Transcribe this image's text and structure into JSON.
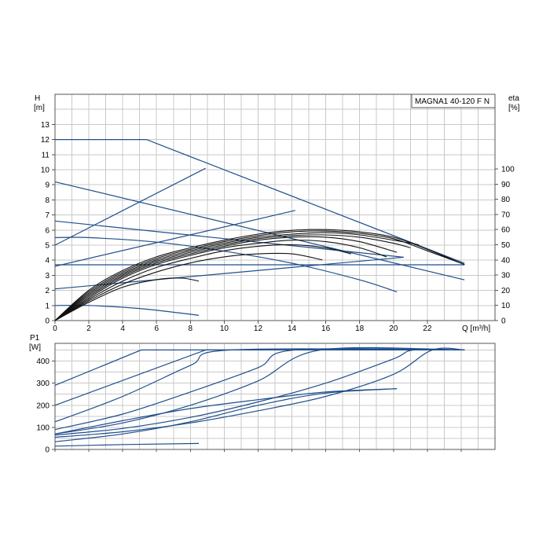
{
  "chart_data": [
    {
      "type": "line",
      "title": "MAGNA1 40-120 F N",
      "xlabel": "Q [m³/h]",
      "ylabel_unit_top": "H",
      "ylabel_unit_bottom": "[m]",
      "y2label_top": "eta",
      "y2label_bottom": "[%]",
      "xlim": [
        0,
        26
      ],
      "ylim": [
        0,
        15
      ],
      "y2lim": [
        0,
        100
      ],
      "x_ticks": [
        "0",
        "2",
        "4",
        "6",
        "8",
        "10",
        "12",
        "14",
        "16",
        "18",
        "20",
        "22"
      ],
      "y_ticks": [
        "0",
        "1",
        "2",
        "3",
        "4",
        "5",
        "6",
        "7",
        "8",
        "9",
        "10",
        "11",
        "12",
        "13"
      ],
      "y2_ticks": [
        "0",
        "10",
        "20",
        "30",
        "40",
        "50",
        "60",
        "70",
        "80",
        "90",
        "100"
      ],
      "grid": true,
      "head_curves": [
        {
          "x": [
            0,
            5.4,
            24.2
          ],
          "y": [
            12.0,
            12.0,
            3.8
          ]
        },
        {
          "x": [
            0,
            24.2
          ],
          "y": [
            9.2,
            2.7
          ]
        },
        {
          "x": [
            0,
            20.6
          ],
          "y": [
            6.6,
            4.2
          ]
        },
        {
          "x": [
            0,
            24.2
          ],
          "y": [
            3.7,
            3.7
          ]
        },
        {
          "x": [
            0,
            2.0,
            6.0,
            10.0,
            14.0,
            18.0,
            20.2
          ],
          "y": [
            5.5,
            5.5,
            5.2,
            4.6,
            3.8,
            2.7,
            1.9
          ]
        },
        {
          "x": [
            0,
            2.0,
            5.0,
            8.5
          ],
          "y": [
            1.0,
            1.0,
            0.8,
            0.35
          ]
        }
      ],
      "control_lines": [
        {
          "x": [
            0,
            8.9
          ],
          "y": [
            5.0,
            10.1
          ]
        },
        {
          "x": [
            0,
            14.2
          ],
          "y": [
            3.6,
            7.3
          ]
        },
        {
          "x": [
            0,
            20.6
          ],
          "y": [
            2.1,
            4.2
          ]
        }
      ],
      "efficiency_curves": [
        {
          "x": [
            0,
            2,
            4,
            6,
            8,
            10,
            12,
            14,
            16,
            18,
            20,
            22,
            24.2
          ],
          "y": [
            0,
            20,
            33,
            42,
            48,
            53,
            57,
            59.5,
            60,
            58.5,
            55,
            47,
            37
          ]
        },
        {
          "x": [
            0,
            2,
            4,
            6,
            8,
            10,
            12,
            14,
            16,
            18,
            20,
            22,
            24.2
          ],
          "y": [
            0,
            19,
            32,
            41,
            47,
            52,
            56,
            58.5,
            59,
            57.5,
            54,
            46,
            37
          ]
        },
        {
          "x": [
            0,
            2,
            4,
            6,
            8,
            10,
            12,
            14,
            16,
            18,
            20,
            21.5
          ],
          "y": [
            0,
            18,
            31,
            40,
            46,
            51,
            55,
            57,
            58,
            56.5,
            53,
            50
          ]
        },
        {
          "x": [
            0,
            2,
            4,
            6,
            8,
            10,
            12,
            14,
            16,
            18,
            20,
            21
          ],
          "y": [
            0,
            17,
            30,
            39,
            45,
            50,
            54,
            56,
            56.5,
            55,
            51,
            48
          ]
        },
        {
          "x": [
            0,
            2,
            4,
            6,
            8,
            10,
            12,
            14,
            16,
            18,
            20.2
          ],
          "y": [
            0,
            16,
            29,
            38,
            44,
            49,
            53,
            55,
            55,
            52,
            45
          ]
        },
        {
          "x": [
            0,
            2,
            4,
            6,
            8,
            10,
            12,
            14,
            16,
            18,
            19.6
          ],
          "y": [
            0,
            15,
            28,
            37,
            43,
            48,
            51,
            53,
            52,
            48,
            42
          ]
        },
        {
          "x": [
            0,
            2,
            4,
            6,
            8,
            10,
            12,
            14,
            16,
            17.5
          ],
          "y": [
            0,
            14,
            26,
            35,
            41,
            46,
            49,
            50,
            48,
            44
          ]
        },
        {
          "x": [
            0,
            2,
            4,
            6,
            8,
            10,
            12,
            14,
            15.8
          ],
          "y": [
            0,
            13,
            24,
            32,
            38,
            42,
            44,
            44,
            40
          ]
        },
        {
          "x": [
            0,
            2,
            4,
            6,
            7.5,
            8.5
          ],
          "y": [
            0,
            12,
            22,
            27,
            28,
            26
          ]
        }
      ]
    },
    {
      "type": "line",
      "ylabel_unit_top": "P1",
      "ylabel_unit_bottom": "[W]",
      "xlim": [
        0,
        26
      ],
      "ylim": [
        0,
        480
      ],
      "y_ticks": [
        "0",
        "100",
        "200",
        "300",
        "400"
      ],
      "grid": true,
      "power_curves": [
        {
          "x": [
            0,
            5.1,
            24.2
          ],
          "y": [
            290,
            450,
            450
          ]
        },
        {
          "x": [
            0,
            8.9,
            24.2
          ],
          "y": [
            200,
            450,
            450
          ]
        },
        {
          "x": [
            0,
            4,
            8,
            10.4,
            24.2
          ],
          "y": [
            125,
            240,
            380,
            450,
            450
          ]
        },
        {
          "x": [
            0,
            4,
            8,
            12,
            14.2,
            24.2
          ],
          "y": [
            90,
            160,
            260,
            370,
            450,
            450
          ]
        },
        {
          "x": [
            0,
            4,
            8,
            12,
            15.7,
            24.2
          ],
          "y": [
            70,
            120,
            200,
            310,
            450,
            450
          ]
        },
        {
          "x": [
            0,
            4,
            8,
            12,
            16,
            20,
            21.2,
            24.2
          ],
          "y": [
            65,
            95,
            145,
            215,
            300,
            410,
            450,
            450
          ]
        },
        {
          "x": [
            0,
            4,
            8,
            12,
            16,
            20,
            22.3,
            24.2
          ],
          "y": [
            55,
            80,
            120,
            175,
            240,
            340,
            450,
            450
          ]
        },
        {
          "x": [
            0,
            4,
            8,
            12,
            16,
            20.2
          ],
          "y": [
            35,
            70,
            125,
            200,
            255,
            275
          ]
        },
        {
          "x": [
            0,
            4,
            8,
            12,
            16,
            20.2
          ],
          "y": [
            70,
            130,
            185,
            225,
            260,
            275
          ]
        },
        {
          "x": [
            0,
            4,
            8.5
          ],
          "y": [
            15,
            22,
            27
          ]
        }
      ]
    }
  ]
}
